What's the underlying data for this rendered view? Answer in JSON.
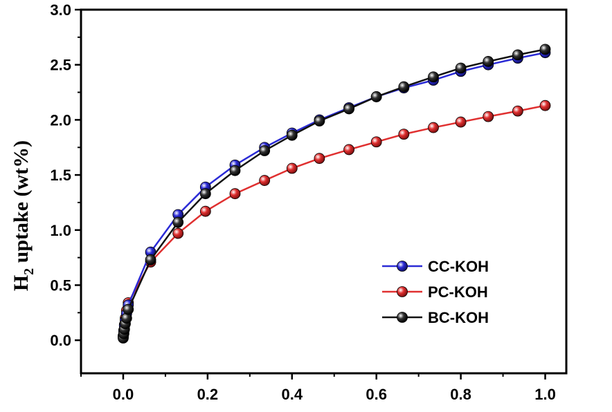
{
  "chart_data": {
    "type": "line",
    "xlabel": "",
    "ylabel": {
      "main": "H",
      "sub": "2",
      "rest": " uptake (wt%)"
    },
    "xlim": [
      -0.1,
      1.05
    ],
    "ylim": [
      -0.3,
      3.0
    ],
    "xticks": [
      0.0,
      0.2,
      0.4,
      0.6,
      0.8,
      1.0
    ],
    "xtick_labels": [
      "0.0",
      "0.2",
      "0.4",
      "0.6",
      "0.8",
      "1.0"
    ],
    "yticks": [
      0.0,
      0.5,
      1.0,
      1.5,
      2.0,
      2.5,
      3.0
    ],
    "ytick_labels": [
      "0.0",
      "0.5",
      "1.0",
      "1.5",
      "2.0",
      "2.5",
      "3.0"
    ],
    "legend_position": "bottom-right",
    "series": [
      {
        "name": "CC-KOH",
        "color": "#2b2bd6",
        "x": [
          0.0,
          0.0015,
          0.003,
          0.005,
          0.008,
          0.012,
          0.065,
          0.13,
          0.195,
          0.265,
          0.335,
          0.4,
          0.465,
          0.535,
          0.6,
          0.665,
          0.735,
          0.8,
          0.865,
          0.935,
          1.0
        ],
        "y": [
          0.03,
          0.08,
          0.13,
          0.18,
          0.24,
          0.32,
          0.8,
          1.14,
          1.39,
          1.59,
          1.75,
          1.88,
          2.0,
          2.11,
          2.21,
          2.29,
          2.36,
          2.44,
          2.5,
          2.56,
          2.61
        ]
      },
      {
        "name": "PC-KOH",
        "color": "#e03030",
        "x": [
          0.0,
          0.0015,
          0.003,
          0.005,
          0.008,
          0.012,
          0.065,
          0.13,
          0.195,
          0.265,
          0.335,
          0.4,
          0.465,
          0.535,
          0.6,
          0.665,
          0.735,
          0.8,
          0.865,
          0.935,
          1.0
        ],
        "y": [
          0.04,
          0.09,
          0.14,
          0.2,
          0.27,
          0.34,
          0.71,
          0.97,
          1.17,
          1.33,
          1.45,
          1.56,
          1.65,
          1.73,
          1.8,
          1.87,
          1.93,
          1.98,
          2.03,
          2.08,
          2.13
        ]
      },
      {
        "name": "BC-KOH",
        "color": "#111111",
        "x": [
          0.0,
          0.0015,
          0.003,
          0.005,
          0.008,
          0.012,
          0.065,
          0.13,
          0.195,
          0.265,
          0.335,
          0.4,
          0.465,
          0.535,
          0.6,
          0.665,
          0.735,
          0.8,
          0.865,
          0.935,
          1.0
        ],
        "y": [
          0.02,
          0.06,
          0.1,
          0.15,
          0.2,
          0.28,
          0.73,
          1.07,
          1.33,
          1.54,
          1.72,
          1.86,
          1.99,
          2.1,
          2.21,
          2.3,
          2.39,
          2.47,
          2.53,
          2.59,
          2.64
        ]
      }
    ]
  }
}
